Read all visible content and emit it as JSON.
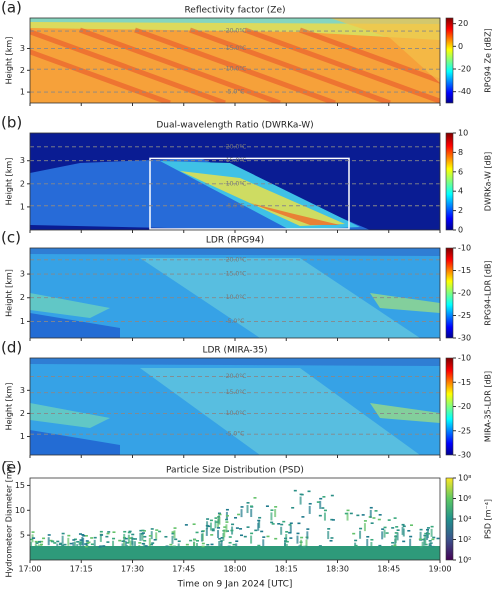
{
  "chart_data": [
    {
      "type": "heatmap",
      "panel_label": "(a)",
      "title": "Reflectivity factor (Ze)",
      "y_label": "Height [km]",
      "ylim": [
        0.5,
        4.4
      ],
      "yticks": [
        1,
        2,
        3
      ],
      "colorbar_label": "RPG94 Ze [dBZ]",
      "colormap": "jet",
      "clim": [
        -50,
        25
      ],
      "cticks": [
        20,
        0,
        -20,
        -40
      ],
      "isotherms": [
        {
          "value": 3.8,
          "label": "-20.0°C"
        },
        {
          "value": 3.0,
          "label": "-15.0°C"
        },
        {
          "value": 2.05,
          "label": "-10.0°C"
        },
        {
          "value": 1.0,
          "label": "-5.0°C"
        }
      ]
    },
    {
      "type": "heatmap",
      "panel_label": "(b)",
      "title": "Dual-wavelength Ratio (DWRKa-W)",
      "y_label": "Height [km]",
      "ylim": [
        0,
        4.2
      ],
      "yticks": [
        1,
        2,
        3
      ],
      "colorbar_label": "DWRKa-W [dB]",
      "colormap": "jet",
      "clim": [
        0,
        10
      ],
      "cticks": [
        10,
        8,
        6,
        4,
        2,
        0
      ],
      "isotherms": [
        {
          "value": 3.6,
          "label": "-20.0°C"
        },
        {
          "value": 3.0,
          "label": "-15.0°C"
        },
        {
          "value": 2.0,
          "label": "-10.0°C"
        },
        {
          "value": 1.05,
          "label": "-5.0°C"
        }
      ]
    },
    {
      "type": "heatmap",
      "panel_label": "(c)",
      "title": "LDR (RPG94)",
      "y_label": "Height [km]",
      "ylim": [
        0.3,
        4.1
      ],
      "yticks": [
        1,
        2,
        3
      ],
      "colorbar_label": "RPG94-LDR [dB]",
      "colormap": "jet",
      "clim": [
        -30,
        -10
      ],
      "cticks": [
        -10,
        -15,
        -20,
        -25,
        -30
      ],
      "isotherms": [
        {
          "value": 3.6,
          "label": "-20.0°C"
        },
        {
          "value": 3.0,
          "label": "-15.0°C"
        },
        {
          "value": 2.0,
          "label": "-10.0°C"
        },
        {
          "value": 1.0,
          "label": "-5.0°C"
        }
      ]
    },
    {
      "type": "heatmap",
      "panel_label": "(d)",
      "title": "LDR (MIRA-35)",
      "y_label": "Height [km]",
      "ylim": [
        0.2,
        4.4
      ],
      "yticks": [
        1,
        2,
        3
      ],
      "colorbar_label": "MIRA-35-LDR [dB]",
      "colormap": "jet",
      "clim": [
        -30,
        -10
      ],
      "cticks": [
        -10,
        -15,
        -20,
        -25,
        -30
      ],
      "isotherms": [
        {
          "value": 3.6,
          "label": "-20.0°C"
        },
        {
          "value": 2.9,
          "label": "-15.0°C"
        },
        {
          "value": 2.0,
          "label": "-10.0°C"
        },
        {
          "value": 1.1,
          "label": "-5.0°C"
        }
      ]
    },
    {
      "type": "heatmap",
      "panel_label": "(e)",
      "title": "Particle Size Distribution (PSD)",
      "y_label": "Hydrometeor Diameter [mm]",
      "ylim": [
        0,
        16.5
      ],
      "yticks": [
        5,
        10,
        15
      ],
      "colorbar_label": "PSD [m⁻⁴]",
      "colormap": "viridis",
      "colorbar_scale": "log",
      "clim": [
        1,
        100000000
      ],
      "cticks": [
        {
          "value": 100000000,
          "label": "10⁸"
        },
        {
          "value": 1000000,
          "label": "10⁶"
        },
        {
          "value": 10000,
          "label": "10⁴"
        },
        {
          "value": 100,
          "label": "10²"
        },
        {
          "value": 1,
          "label": "10⁰"
        }
      ],
      "xlim": [
        "17:00",
        "19:00"
      ],
      "xticks": [
        "17:00",
        "17:15",
        "17:30",
        "17:45",
        "18:00",
        "18:15",
        "18:30",
        "18:45",
        "19:00"
      ],
      "x_label": "Time on 9 Jan 2024 [UTC]"
    }
  ]
}
